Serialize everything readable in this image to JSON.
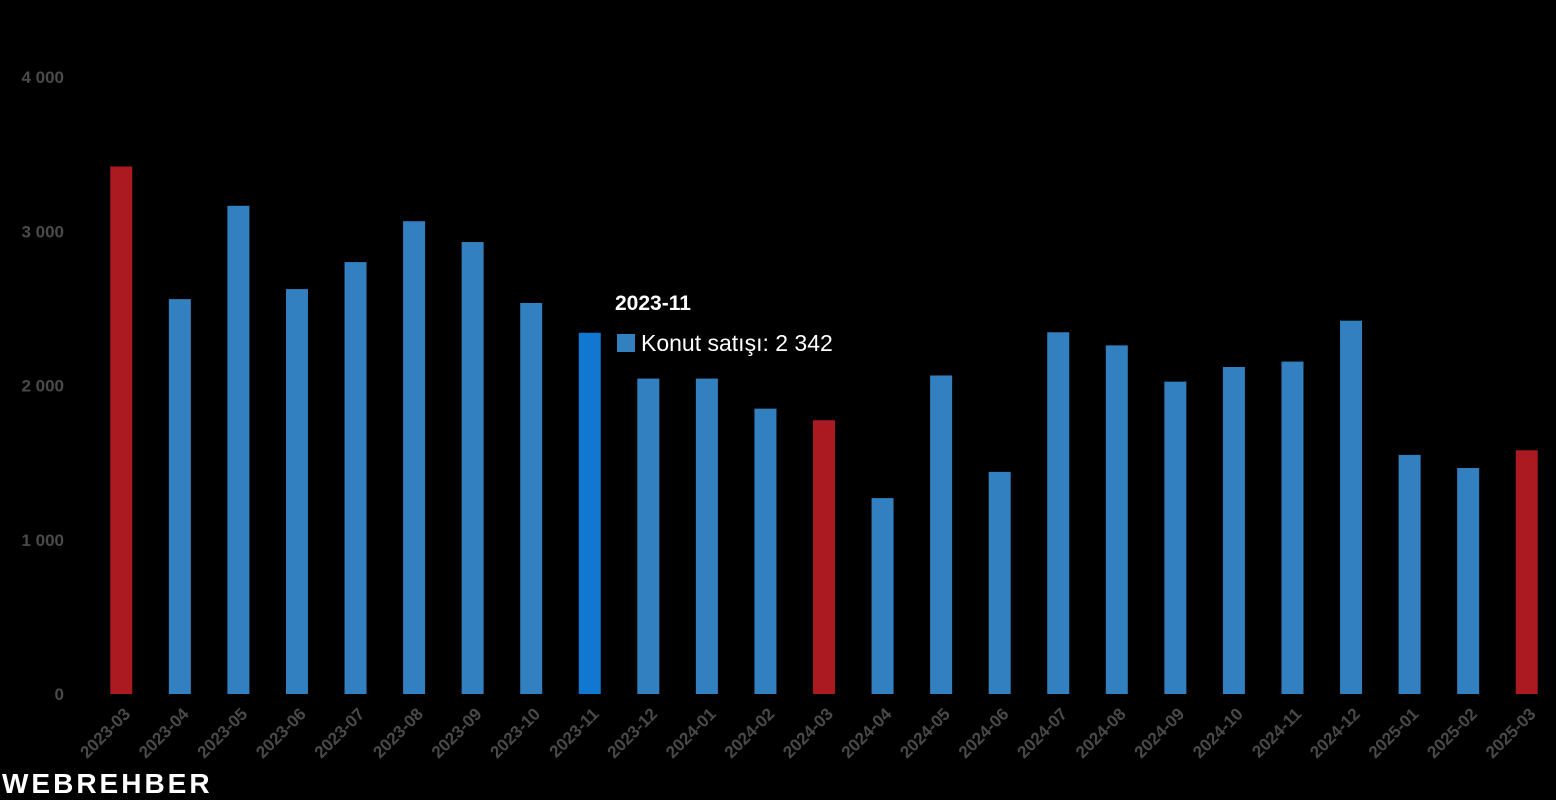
{
  "chart_data": {
    "type": "bar",
    "categories": [
      "2023-03",
      "2023-04",
      "2023-05",
      "2023-06",
      "2023-07",
      "2023-08",
      "2023-09",
      "2023-10",
      "2023-11",
      "2023-12",
      "2024-01",
      "2024-02",
      "2024-03",
      "2024-04",
      "2024-05",
      "2024-06",
      "2024-07",
      "2024-08",
      "2024-09",
      "2024-10",
      "2024-11",
      "2024-12",
      "2025-01",
      "2025-02",
      "2025-03"
    ],
    "series": [
      {
        "name": "Konut satışı",
        "values": [
          3420,
          2560,
          3165,
          2625,
          2800,
          3065,
          2930,
          2535,
          2342,
          2045,
          2045,
          1850,
          1775,
          1270,
          2065,
          1440,
          2345,
          2260,
          2025,
          2120,
          2155,
          2420,
          1550,
          1465,
          1580
        ],
        "color": "#3380c0",
        "highlight_color": "#ab1a20",
        "highlight_categories": [
          "2023-03",
          "2024-03",
          "2025-03"
        ],
        "hover_color": "#1177d0"
      }
    ],
    "yticks": [
      0,
      1000,
      2000,
      3000,
      4000
    ],
    "ytick_labels": [
      "0",
      "1 000",
      "2 000",
      "3 000",
      "4 000"
    ],
    "ylim": [
      0,
      4000
    ],
    "grid": false,
    "legend": "none",
    "title": "",
    "xlabel": "",
    "ylabel": ""
  },
  "tooltip": {
    "title": "2023-11",
    "series_label": "Konut satışı: 2 342",
    "hovered_category": "2023-11"
  },
  "watermark": "WEBREHBER"
}
